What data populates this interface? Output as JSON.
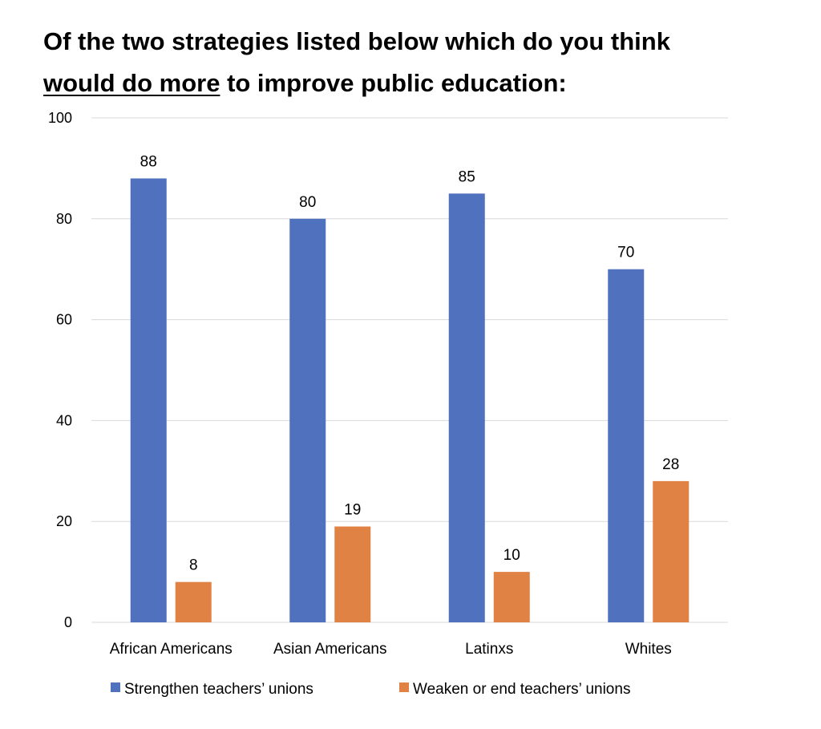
{
  "title": {
    "part1": "Of the two strategies listed below which do you think",
    "part2_underlined": "would do more",
    "part3": "to improve public education:"
  },
  "chart_data": {
    "type": "bar",
    "categories": [
      "African Americans",
      "Asian Americans",
      "Latinxs",
      "Whites"
    ],
    "series": [
      {
        "name": "Strengthen teachers’ unions",
        "color": "#4f71be",
        "values": [
          88,
          80,
          85,
          70
        ]
      },
      {
        "name": "Weaken or end teachers’ unions",
        "color": "#e08244",
        "values": [
          8,
          19,
          10,
          28
        ]
      }
    ],
    "title": "Of the two strategies listed below which do you think would do more to improve public education:",
    "xlabel": "",
    "ylabel": "",
    "ylim": [
      0,
      100
    ],
    "yticks": [
      0,
      20,
      40,
      60,
      80,
      100
    ],
    "grid": true,
    "legend_position": "bottom",
    "gridline_color": "#d9d9d9"
  }
}
